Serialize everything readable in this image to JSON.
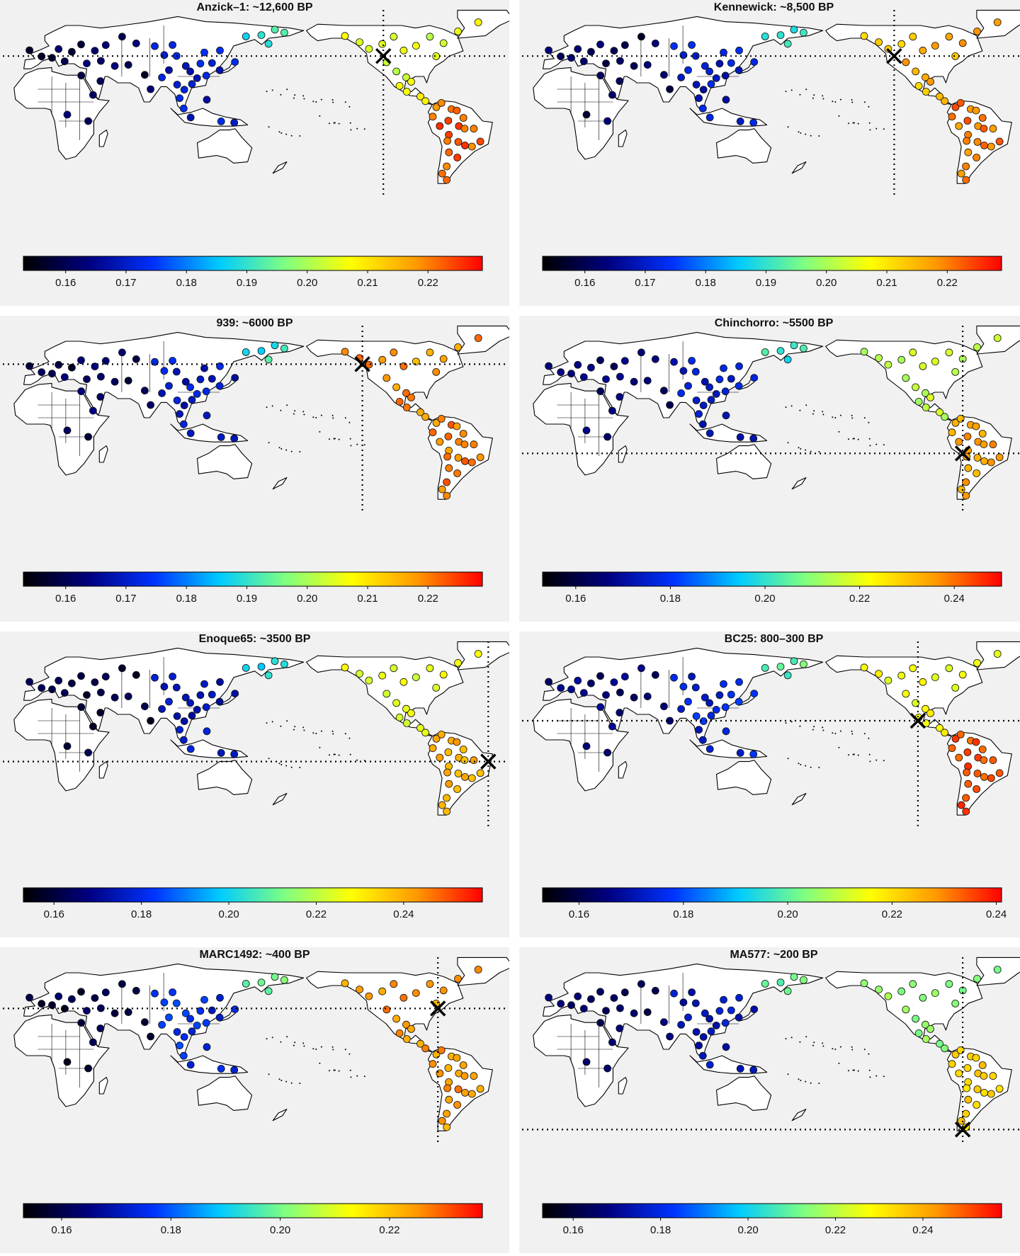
{
  "colors": {
    "background": "#f1f1f1",
    "land": "#ffffff",
    "border": "#000000",
    "colorbar_scale": [
      "#000000",
      "#000080",
      "#0033ff",
      "#00ccff",
      "#80ff80",
      "#ffff00",
      "#ff9900",
      "#ff0000"
    ]
  },
  "panels": [
    {
      "title": "Anzick–1: ~12,600 BP",
      "ticks": [
        "0.16",
        "0.17",
        "0.18",
        "0.19",
        "0.20",
        "0.21",
        "0.22"
      ],
      "tick_values": [
        0.16,
        0.17,
        0.18,
        0.19,
        0.2,
        0.21,
        0.22
      ],
      "range": [
        0.153,
        0.229
      ],
      "sample_marker": {
        "lon": 247,
        "lat": 46
      },
      "tint": {
        "eurasia": 0.16,
        "east_asia": 0.17,
        "beringia": 0.19,
        "north_america": 0.205,
        "south_america": 0.222
      }
    },
    {
      "title": "Kennewick: ~8,500 BP",
      "ticks": [
        "0.16",
        "0.17",
        "0.18",
        "0.19",
        "0.20",
        "0.21",
        "0.22"
      ],
      "tick_values": [
        0.16,
        0.17,
        0.18,
        0.19,
        0.2,
        0.21,
        0.22
      ],
      "range": [
        0.153,
        0.229
      ],
      "sample_marker": {
        "lon": 241,
        "lat": 46
      },
      "tint": {
        "eurasia": 0.16,
        "east_asia": 0.17,
        "beringia": 0.19,
        "north_america": 0.215,
        "south_america": 0.22
      }
    },
    {
      "title": "939: ~6000 BP",
      "ticks": [
        "0.16",
        "0.17",
        "0.18",
        "0.19",
        "0.20",
        "0.21",
        "0.22"
      ],
      "tick_values": [
        0.16,
        0.17,
        0.18,
        0.19,
        0.2,
        0.21,
        0.22
      ],
      "range": [
        0.153,
        0.229
      ],
      "sample_marker": {
        "lon": 232,
        "lat": 52
      },
      "tint": {
        "eurasia": 0.16,
        "east_asia": 0.17,
        "beringia": 0.19,
        "north_america": 0.218,
        "south_america": 0.22
      }
    },
    {
      "title": "Chinchorro: ~5500 BP",
      "ticks": [
        "0.16",
        "0.18",
        "0.20",
        "0.22",
        "0.24"
      ],
      "tick_values": [
        0.16,
        0.18,
        0.2,
        0.22,
        0.24
      ],
      "range": [
        0.153,
        0.25
      ],
      "sample_marker": {
        "lon": 290,
        "lat": -18
      },
      "tint": {
        "eurasia": 0.165,
        "east_asia": 0.175,
        "beringia": 0.2,
        "north_america": 0.215,
        "south_america": 0.235
      }
    },
    {
      "title": "Enoque65: ~3500 BP",
      "ticks": [
        "0.16",
        "0.18",
        "0.20",
        "0.22",
        "0.24"
      ],
      "tick_values": [
        0.16,
        0.18,
        0.2,
        0.22,
        0.24
      ],
      "range": [
        0.153,
        0.258
      ],
      "sample_marker": {
        "lon": 322,
        "lat": -12
      },
      "tint": {
        "eurasia": 0.16,
        "east_asia": 0.175,
        "beringia": 0.2,
        "north_america": 0.225,
        "south_america": 0.24
      }
    },
    {
      "title": "BC25: 800–300 BP",
      "ticks": [
        "0.16",
        "0.18",
        "0.20",
        "0.22",
        "0.24"
      ],
      "tick_values": [
        0.16,
        0.18,
        0.2,
        0.22,
        0.24
      ],
      "range": [
        0.153,
        0.241
      ],
      "sample_marker": {
        "lon": 258,
        "lat": 20
      },
      "tint": {
        "eurasia": 0.165,
        "east_asia": 0.175,
        "beringia": 0.2,
        "north_america": 0.215,
        "south_america": 0.235
      }
    },
    {
      "title": "MARC1492: ~400 BP",
      "ticks": [
        "0.16",
        "0.18",
        "0.20",
        "0.22"
      ],
      "tick_values": [
        0.16,
        0.18,
        0.2,
        0.22
      ],
      "range": [
        0.153,
        0.237
      ],
      "sample_marker": {
        "lon": 286,
        "lat": 42
      },
      "tint": {
        "eurasia": 0.16,
        "east_asia": 0.175,
        "beringia": 0.2,
        "north_america": 0.225,
        "south_america": 0.225
      }
    },
    {
      "title": "MA577: ~200 BP",
      "ticks": [
        "0.16",
        "0.18",
        "0.20",
        "0.22",
        "0.24"
      ],
      "tick_values": [
        0.16,
        0.18,
        0.2,
        0.22,
        0.24
      ],
      "range": [
        0.153,
        0.258
      ],
      "sample_marker": {
        "lon": 290,
        "lat": -53
      },
      "tint": {
        "eurasia": 0.165,
        "east_asia": 0.175,
        "beringia": 0.21,
        "north_america": 0.215,
        "south_america": 0.235
      }
    }
  ]
}
